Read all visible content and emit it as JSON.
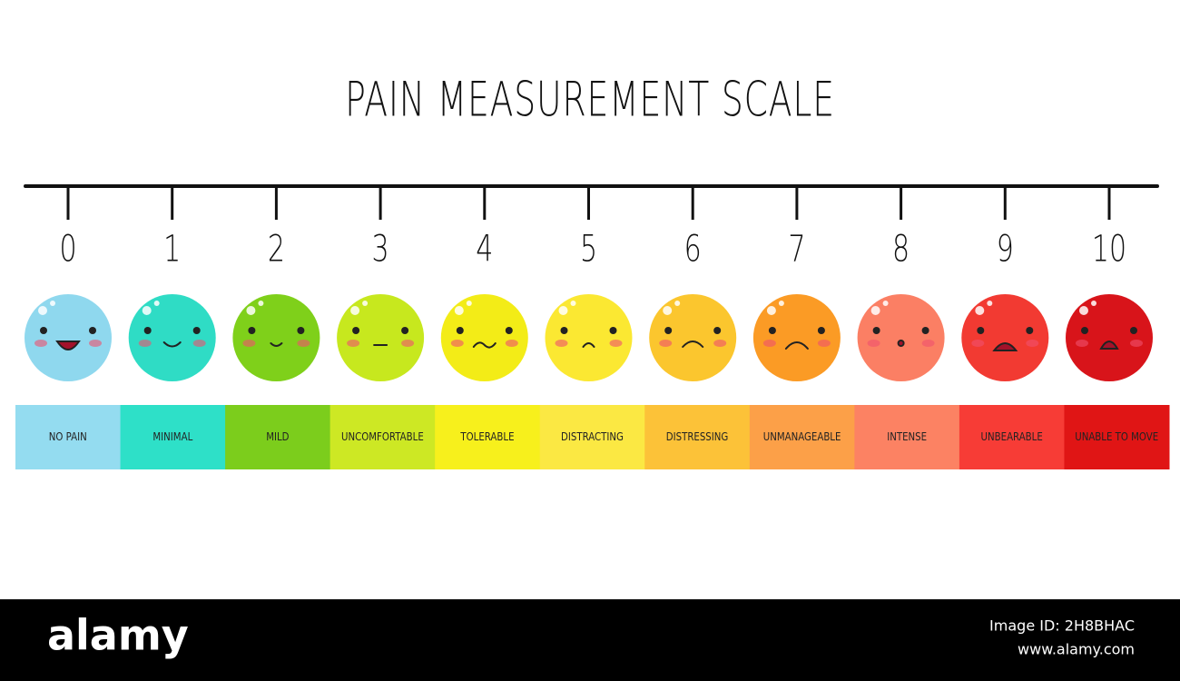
{
  "header": {
    "title": "PAIN MEASUREMENT SCALE"
  },
  "levels": [
    {
      "score": 0,
      "label": "NO PAIN",
      "face_color": "#8fd8ee",
      "band_color": "#94dcf0"
    },
    {
      "score": 1,
      "label": "MINIMAL",
      "face_color": "#2fdcc5",
      "band_color": "#2ee0c8"
    },
    {
      "score": 2,
      "label": "MILD",
      "face_color": "#7fd01a",
      "band_color": "#7ccd1c"
    },
    {
      "score": 3,
      "label": "UNCOMFORTABLE",
      "face_color": "#c7e81e",
      "band_color": "#cde824"
    },
    {
      "score": 4,
      "label": "TOLERABLE",
      "face_color": "#f3ec17",
      "band_color": "#f7f01c"
    },
    {
      "score": 5,
      "label": "DISTRACTING",
      "face_color": "#fbe832",
      "band_color": "#fbe843"
    },
    {
      "score": 6,
      "label": "DISTRESSING",
      "face_color": "#fbc62e",
      "band_color": "#fcc238"
    },
    {
      "score": 7,
      "label": "UNMANAGEABLE",
      "face_color": "#fb9b25",
      "band_color": "#fca048"
    },
    {
      "score": 8,
      "label": "INTENSE",
      "face_color": "#fb7f64",
      "band_color": "#fc8263"
    },
    {
      "score": 9,
      "label": "UNBEARABLE",
      "face_color": "#f23a32",
      "band_color": "#f73c36"
    },
    {
      "score": 10,
      "label": "UNABLE TO MOVE",
      "face_color": "#d8141a",
      "band_color": "#e01515"
    }
  ],
  "footer": {
    "brand": "alamy",
    "image_id": "Image ID: 2H8BHAC",
    "url": "www.alamy.com"
  }
}
